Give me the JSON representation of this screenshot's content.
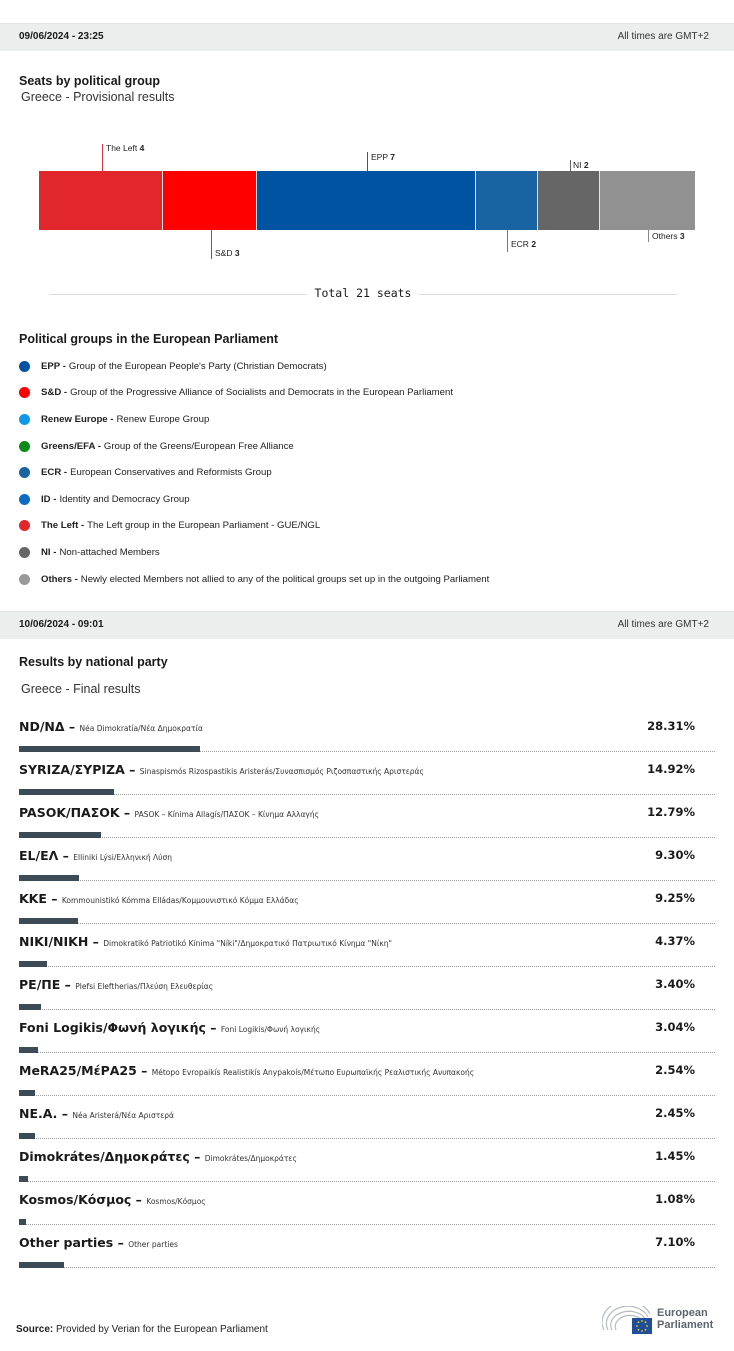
{
  "top_band": {
    "date": "09/06/2024 - 23:25",
    "timezone_note": "All times are GMT+2"
  },
  "seats": {
    "title": "Seats by political group",
    "subtitle": "Greece - Provisional results",
    "total_label": "Total 21 seats",
    "segments": [
      {
        "group": "The Left",
        "seats": "4",
        "color": "#e1262c"
      },
      {
        "group": "S&D",
        "seats": "3",
        "color": "#ff0000"
      },
      {
        "group": "EPP",
        "seats": "7",
        "color": "#0053a1"
      },
      {
        "group": "ECR",
        "seats": "2",
        "color": "#1a63a3"
      },
      {
        "group": "NI",
        "seats": "2",
        "color": "#666666"
      },
      {
        "group": "Others",
        "seats": "3",
        "color": "#919191"
      }
    ]
  },
  "legend": {
    "title": "Political groups in the European Parliament",
    "items": [
      {
        "abbr": "EPP -",
        "desc": "Group of the European People's Party (Christian Democrats)",
        "color": "#0053a1"
      },
      {
        "abbr": "S&D -",
        "desc": "Group of the Progressive Alliance of Socialists and Democrats in the European Parliament",
        "color": "#ff0000"
      },
      {
        "abbr": "Renew Europe -",
        "desc": "Renew Europe Group",
        "color": "#0c9ae8"
      },
      {
        "abbr": "Greens/EFA -",
        "desc": "Group of the Greens/European Free Alliance",
        "color": "#0a8a19"
      },
      {
        "abbr": "ECR -",
        "desc": "European Conservatives and Reformists Group",
        "color": "#1a63a3"
      },
      {
        "abbr": "ID -",
        "desc": "Identity and Democracy Group",
        "color": "#0e6bc4"
      },
      {
        "abbr": "The Left -",
        "desc": "The Left group in the European Parliament - GUE/NGL",
        "color": "#e1262c"
      },
      {
        "abbr": "NI -",
        "desc": "Non-attached Members",
        "color": "#666666"
      },
      {
        "abbr": "Others -",
        "desc": "Newly elected Members not allied to any of the political groups set up in the outgoing Parliament",
        "color": "#999999"
      }
    ]
  },
  "second_band": {
    "date": "10/06/2024 - 09:01",
    "timezone_note": "All times are GMT+2"
  },
  "results": {
    "title": "Results by national party",
    "subtitle": "Greece - Final results",
    "bar_color": "#3c4b55",
    "rows": [
      {
        "name": "ND/ΝΔ",
        "full": "Néa Dimokratía/Νέα Δημοκρατία",
        "pct": "28.31%",
        "value": 28.31
      },
      {
        "name": "SYRIZA/ΣΥΡΙΖΑ",
        "full": "Sinaspismós Rizospastikis Aristerás/Συνασπισμός Ριζοσπαστικής Αριστεράς",
        "pct": "14.92%",
        "value": 14.92
      },
      {
        "name": "PASOK/ΠΑΣΟΚ",
        "full": "PASOK – Kínima Allagís/ΠΑΣΟΚ – Κίνημα Αλλαγής",
        "pct": "12.79%",
        "value": 12.79
      },
      {
        "name": "EL/ΕΛ",
        "full": "Elliniki Lýsi/Ελληνική Λύση",
        "pct": "9.30%",
        "value": 9.3
      },
      {
        "name": "KKE",
        "full": "Kommounistikó Kómma Elládas/Κομμουνιστικό Κόμμα Ελλάδας",
        "pct": "9.25%",
        "value": 9.25
      },
      {
        "name": "NIKI/NIKH",
        "full": "Dimokratikó Patriotikó Kínima \"Níki\"/Δημοκρατικό Πατριωτικό Κίνημα \"Νίκη\"",
        "pct": "4.37%",
        "value": 4.37
      },
      {
        "name": "PE/ΠΕ",
        "full": "Plefsi Eleftherias/Πλεύση Ελευθερίας",
        "pct": "3.40%",
        "value": 3.4
      },
      {
        "name": "Foni Logikis/Φωνή λογικής",
        "full": "Foni Logikis/Φωνή λογικής",
        "pct": "3.04%",
        "value": 3.04
      },
      {
        "name": "MeRA25/ΜέΡΑ25",
        "full": "Métopo Evropaikís Realistikís Anypakoís/Μέτωπο Ευρωπαϊκής Ρεαλιστικής Ανυπακοής",
        "pct": "2.54%",
        "value": 2.54
      },
      {
        "name": "NE.A.",
        "full": "Néa Aristerá/Νέα Αριστερά",
        "pct": "2.45%",
        "value": 2.45
      },
      {
        "name": "Dimokrátes/Δημοκράτες",
        "full": "Dimokrátes/Δημοκράτες",
        "pct": "1.45%",
        "value": 1.45
      },
      {
        "name": "Kosmos/Κόσμος",
        "full": "Kosmos/Κόσμος",
        "pct": "1.08%",
        "value": 1.08
      },
      {
        "name": "Other parties",
        "full": "Other parties",
        "pct": "7.10%",
        "value": 7.1
      }
    ]
  },
  "footer": {
    "source_label": "Source:",
    "source_text": "Provided by Verian for the European Parliament",
    "logo_line1": "European",
    "logo_line2": "Parliament"
  },
  "chart_data": [
    {
      "type": "bar",
      "title": "Seats by political group",
      "subtitle": "Greece - Provisional results",
      "orientation": "stacked-horizontal",
      "categories": [
        "The Left",
        "S&D",
        "EPP",
        "ECR",
        "NI",
        "Others"
      ],
      "values": [
        4,
        3,
        7,
        2,
        2,
        3
      ],
      "colors": [
        "#e1262c",
        "#ff0000",
        "#0053a1",
        "#1a63a3",
        "#666666",
        "#919191"
      ],
      "total": 21,
      "annotation": "Total 21 seats"
    },
    {
      "type": "bar",
      "title": "Results by national party",
      "subtitle": "Greece - Final results",
      "orientation": "horizontal",
      "categories": [
        "ND/ΝΔ",
        "SYRIZA/ΣΥΡΙΖΑ",
        "PASOK/ΠΑΣΟΚ",
        "EL/ΕΛ",
        "KKE",
        "NIKI/NIKH",
        "PE/ΠΕ",
        "Foni Logikis/Φωνή λογικής",
        "MeRA25/ΜέΡΑ25",
        "NE.A.",
        "Dimokrátes/Δημοκράτες",
        "Kosmos/Κόσμος",
        "Other parties"
      ],
      "values": [
        28.31,
        14.92,
        12.79,
        9.3,
        9.25,
        4.37,
        3.4,
        3.04,
        2.54,
        2.45,
        1.45,
        1.08,
        7.1
      ],
      "ylabel": "%"
    }
  ]
}
